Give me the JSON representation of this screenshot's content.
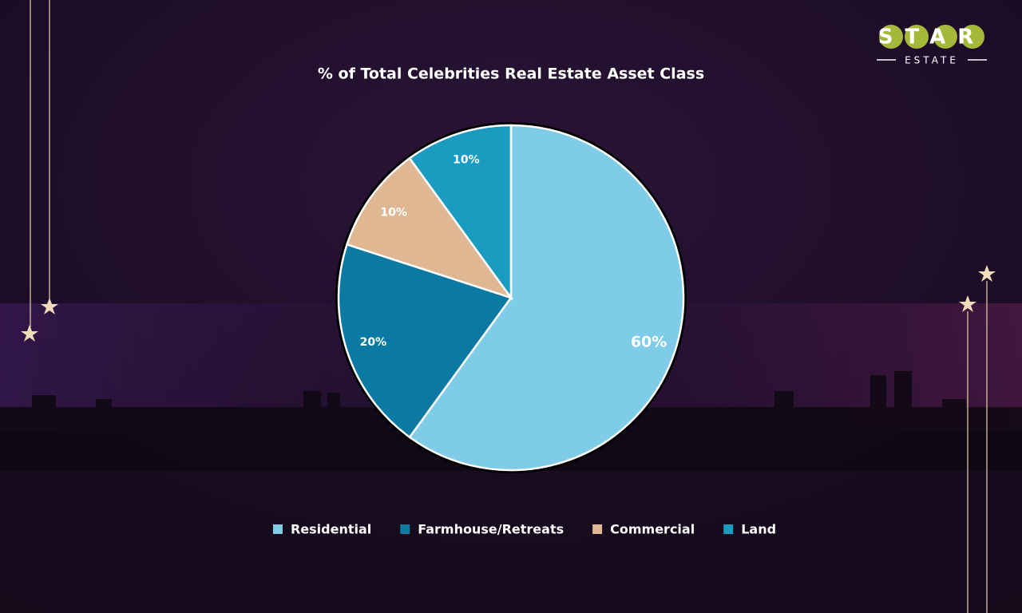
{
  "brand": {
    "name": "STAR",
    "tagline": "ESTATE"
  },
  "chart_data": {
    "type": "pie",
    "title": "% of Total Celebrities Real Estate Asset Class",
    "categories": [
      "Residential",
      "Farmhouse/Retreats",
      "Commercial",
      "Land"
    ],
    "values": [
      60,
      20,
      10,
      10
    ],
    "value_labels": [
      "60%",
      "20%",
      "10%",
      "10%"
    ],
    "colors": [
      "#7ecce8",
      "#0a7aa3",
      "#dfb893",
      "#1a9bbf"
    ],
    "legend": "bottom"
  }
}
